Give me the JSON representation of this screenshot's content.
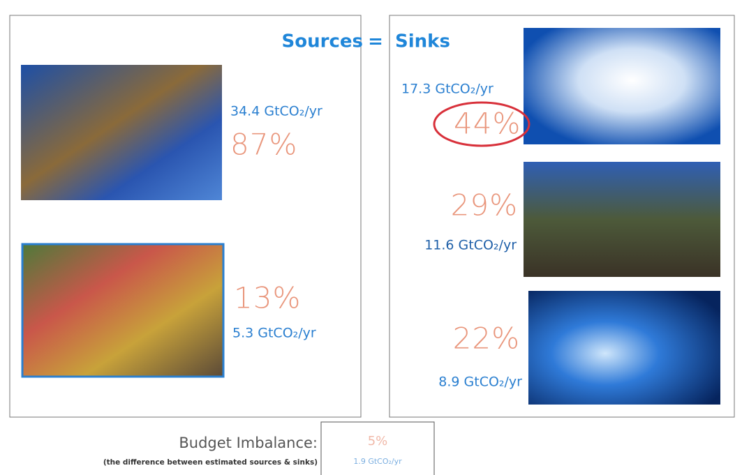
{
  "header": {
    "sources": "Sources",
    "equals": "=",
    "sinks": "Sinks"
  },
  "sources": [
    {
      "flux": "34.4 GtCO₂/yr",
      "percent": "87%"
    },
    {
      "flux": "5.3 GtCO₂/yr",
      "percent": "13%"
    }
  ],
  "sinks": [
    {
      "flux": "17.3 GtCO₂/yr",
      "percent": "44%"
    },
    {
      "flux": "11.6 GtCO₂/yr",
      "percent": "29%"
    },
    {
      "flux": "8.9 GtCO₂/yr",
      "percent": "22%"
    }
  ],
  "budget": {
    "label": "Budget Imbalance:",
    "note": "(the difference between estimated sources & sinks)",
    "percent": "5%",
    "flux": "1.9 GtCO₂/yr"
  }
}
